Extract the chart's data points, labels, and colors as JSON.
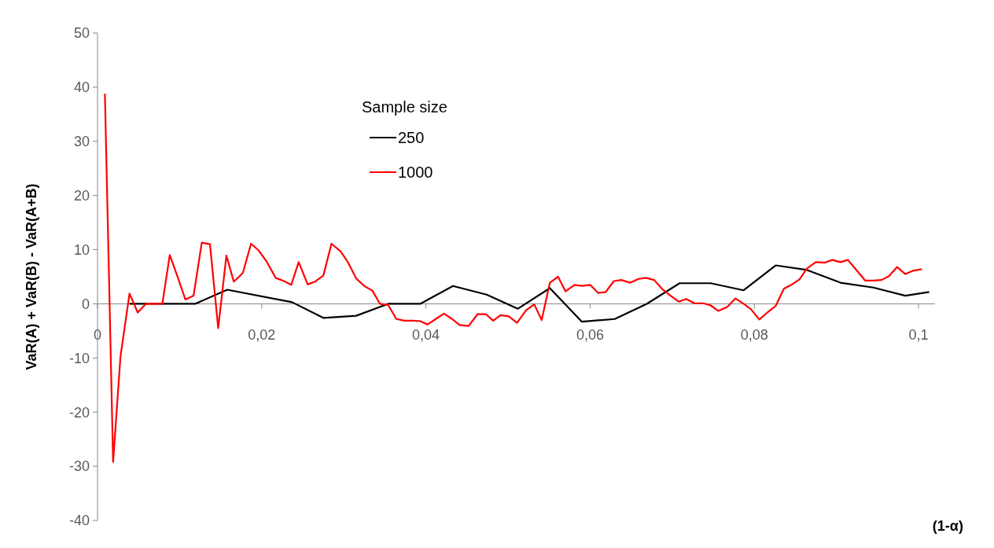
{
  "chart_data": {
    "type": "line",
    "xlabel": "(1-α)",
    "ylabel": "VaR(A) + VaR(B) - VaR(A+B)",
    "legend_title": "Sample size",
    "legend": "top",
    "grid": false,
    "line_style": "solid",
    "xlim": [
      0,
      0.102
    ],
    "xticks": [
      {
        "value": 0,
        "label": "0"
      },
      {
        "value": 0.02,
        "label": "0,02"
      },
      {
        "value": 0.04,
        "label": "0,04"
      },
      {
        "value": 0.06,
        "label": "0,06"
      },
      {
        "value": 0.08,
        "label": "0,08"
      },
      {
        "value": 0.1,
        "label": "0,1"
      }
    ],
    "ylim": [
      -40,
      50
    ],
    "yticks": [
      -40,
      -30,
      -20,
      -10,
      0,
      10,
      20,
      30,
      40,
      50
    ],
    "series": [
      {
        "name": "250",
        "color": "#000000",
        "x": [
          0.0039,
          0.0119,
          0.0158,
          0.0237,
          0.0275,
          0.0315,
          0.0354,
          0.0393,
          0.0433,
          0.0474,
          0.0512,
          0.0551,
          0.059,
          0.063,
          0.0669,
          0.0709,
          0.0747,
          0.0787,
          0.0826,
          0.0863,
          0.0905,
          0.0945,
          0.0984,
          0.1013
        ],
        "values": [
          0,
          0,
          2.6,
          0.3,
          -2.6,
          -2.2,
          0,
          0,
          3.3,
          1.7,
          -0.9,
          2.9,
          -3.3,
          -2.8,
          0,
          3.8,
          3.8,
          2.5,
          7.1,
          6.3,
          3.9,
          3.0,
          1.5,
          2.2
        ]
      },
      {
        "name": "1000",
        "color": "#ff0000",
        "x": [
          0.0009,
          0.0019,
          0.0028,
          0.0039,
          0.0049,
          0.0059,
          0.0069,
          0.0079,
          0.0088,
          0.0098,
          0.0107,
          0.0117,
          0.0127,
          0.0137,
          0.0147,
          0.0157,
          0.0166,
          0.0177,
          0.0187,
          0.0196,
          0.0206,
          0.0217,
          0.0227,
          0.0236,
          0.0245,
          0.0256,
          0.0265,
          0.0275,
          0.0285,
          0.0296,
          0.0305,
          0.0315,
          0.0325,
          0.0335,
          0.0344,
          0.0354,
          0.0364,
          0.0374,
          0.0384,
          0.0393,
          0.0402,
          0.0412,
          0.0422,
          0.0432,
          0.0441,
          0.0452,
          0.0463,
          0.0473,
          0.0482,
          0.0491,
          0.0501,
          0.0511,
          0.0522,
          0.0532,
          0.0541,
          0.0551,
          0.0561,
          0.057,
          0.0581,
          0.059,
          0.06,
          0.061,
          0.0619,
          0.0629,
          0.0638,
          0.0649,
          0.0659,
          0.0668,
          0.0678,
          0.0688,
          0.0698,
          0.0708,
          0.0717,
          0.0727,
          0.0738,
          0.0747,
          0.0756,
          0.0767,
          0.0777,
          0.0787,
          0.0796,
          0.0806,
          0.0816,
          0.0826,
          0.0836,
          0.0845,
          0.0855,
          0.0864,
          0.0875,
          0.0886,
          0.0895,
          0.0905,
          0.0914,
          0.0924,
          0.0935,
          0.0945,
          0.0955,
          0.0964,
          0.0974,
          0.0984,
          0.0993,
          0.1004
        ],
        "values": [
          38.8,
          -29.2,
          -9.7,
          1.9,
          -1.6,
          0,
          0,
          0,
          9.0,
          4.8,
          0.8,
          1.5,
          11.3,
          11.0,
          -4.5,
          8.9,
          4.1,
          5.7,
          11.1,
          9.9,
          7.8,
          4.8,
          4.2,
          3.5,
          7.7,
          3.6,
          4.1,
          5.2,
          11.1,
          9.7,
          7.7,
          4.7,
          3.3,
          2.4,
          0,
          -0.2,
          -2.8,
          -3.1,
          -3.1,
          -3.2,
          -3.8,
          -2.8,
          -1.8,
          -2.8,
          -3.9,
          -4.1,
          -1.9,
          -1.9,
          -3.1,
          -2.1,
          -2.3,
          -3.5,
          -1.2,
          -0.1,
          -3.0,
          3.9,
          5.0,
          2.3,
          3.5,
          3.3,
          3.5,
          2.0,
          2.2,
          4.2,
          4.4,
          3.9,
          4.6,
          4.8,
          4.4,
          2.7,
          1.5,
          0.4,
          0.9,
          0.1,
          0.1,
          -0.3,
          -1.3,
          -0.6,
          1.0,
          0,
          -1.0,
          -2.9,
          -1.6,
          -0.4,
          2.8,
          3.5,
          4.5,
          6.5,
          7.7,
          7.6,
          8.1,
          7.7,
          8.1,
          6.3,
          4.3,
          4.3,
          4.4,
          5.1,
          6.8,
          5.5,
          6.1,
          6.4
        ]
      }
    ]
  }
}
